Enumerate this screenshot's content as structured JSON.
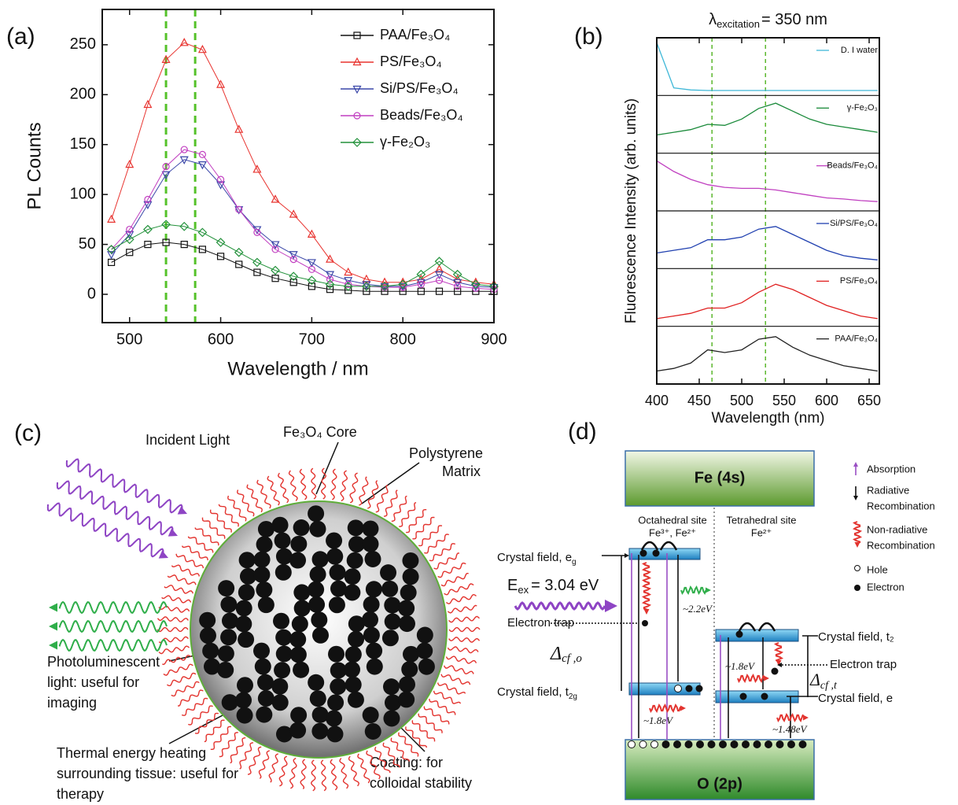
{
  "chart_data": [
    {
      "type": "line",
      "panel_label": "(a)",
      "xlabel": "Wavelength / nm",
      "ylabel": "PL Counts",
      "x": [
        480,
        500,
        520,
        540,
        560,
        580,
        600,
        620,
        640,
        660,
        680,
        700,
        720,
        740,
        760,
        780,
        800,
        820,
        840,
        860,
        880,
        900
      ],
      "xlim": [
        470,
        900
      ],
      "xticks": [
        500,
        600,
        700,
        800,
        900
      ],
      "ylim": [
        -26,
        283
      ],
      "yticks": [
        0,
        50,
        100,
        150,
        200,
        250
      ],
      "legend": "upper right",
      "vlines": {
        "values": [
          540,
          572
        ],
        "color": "#55c22a"
      },
      "series": [
        {
          "name": "PAA/Fe₃O₄",
          "color": "#111111",
          "marker": "square",
          "values": [
            32,
            42,
            50,
            52,
            50,
            45,
            38,
            30,
            22,
            16,
            12,
            8,
            5,
            4,
            3,
            3,
            3,
            3,
            3,
            3,
            3,
            3
          ]
        },
        {
          "name": "PS/Fe₃O₄",
          "color": "#e8332f",
          "marker": "triangle-up",
          "values": [
            75,
            130,
            190,
            235,
            252,
            245,
            210,
            165,
            125,
            95,
            80,
            60,
            35,
            22,
            15,
            12,
            12,
            15,
            25,
            15,
            12,
            10
          ]
        },
        {
          "name": "Si/PS/Fe₃O₄",
          "color": "#3a46a8",
          "marker": "triangle-down",
          "values": [
            40,
            60,
            90,
            120,
            135,
            130,
            110,
            85,
            65,
            50,
            40,
            32,
            20,
            14,
            10,
            8,
            8,
            12,
            20,
            12,
            8,
            7
          ]
        },
        {
          "name": "Beads/Fe₃O₄",
          "color": "#c13fc0",
          "marker": "circle",
          "values": [
            45,
            65,
            95,
            128,
            145,
            140,
            115,
            85,
            62,
            45,
            35,
            25,
            15,
            10,
            8,
            7,
            7,
            10,
            14,
            8,
            6,
            5
          ]
        },
        {
          "name": "γ-Fe₂O₃",
          "color": "#22913a",
          "marker": "diamond",
          "values": [
            45,
            55,
            65,
            70,
            68,
            62,
            52,
            42,
            32,
            24,
            18,
            14,
            10,
            8,
            8,
            8,
            10,
            20,
            33,
            20,
            10,
            8
          ]
        }
      ]
    },
    {
      "type": "line",
      "layout": "stacked",
      "panel_label": "(b)",
      "title": {
        "symbol": "λ",
        "subscript": "excitation",
        "text": "= 350 nm"
      },
      "xlabel": "Wavelength (nm)",
      "ylabel": "Fluorescence Intensity (arb. units)",
      "x": [
        400,
        420,
        440,
        460,
        480,
        500,
        520,
        540,
        560,
        580,
        600,
        620,
        640,
        660
      ],
      "xlim": [
        400,
        662
      ],
      "xticks": [
        400,
        450,
        500,
        550,
        600,
        650
      ],
      "ylim": [
        0,
        10
      ],
      "vlines": {
        "values": [
          465,
          528
        ],
        "color": "#5cb82e"
      },
      "series": [
        {
          "name": "D. I water",
          "color": "#40b8d8",
          "values": [
            9.5,
            1,
            0.6,
            0.5,
            0.5,
            0.5,
            0.5,
            0.5,
            0.5,
            0.5,
            0.5,
            0.5,
            0.5,
            0.5
          ]
        },
        {
          "name": "γ-Fe₂O₃",
          "color": "#1a8a3a",
          "values": [
            3,
            3.5,
            4,
            5,
            4.8,
            6,
            8,
            9,
            7.5,
            6,
            5,
            4.5,
            4,
            3.5
          ]
        },
        {
          "name": "Beads/Fe₃O₄",
          "color": "#c040c0",
          "values": [
            9,
            7,
            5.5,
            4.5,
            4,
            3.8,
            3.8,
            3.5,
            3,
            2.5,
            2,
            1.8,
            1.5,
            1.3
          ]
        },
        {
          "name": "Si/PS/Fe₃O₄",
          "color": "#2040b0",
          "values": [
            2.5,
            3,
            3.5,
            5,
            5,
            5.5,
            7,
            7.5,
            6,
            4.5,
            3,
            2,
            1.5,
            1.2
          ]
        },
        {
          "name": "PS/Fe₃O₄",
          "color": "#e02020",
          "values": [
            1,
            1.5,
            2,
            3,
            3,
            4,
            6,
            7.5,
            6.5,
            5,
            3.5,
            2.5,
            1.5,
            1
          ]
        },
        {
          "name": "PAA/Fe₃O₄",
          "color": "#222222",
          "values": [
            2,
            2.5,
            3.5,
            6,
            5.5,
            6,
            8,
            8.5,
            6.5,
            5,
            4,
            3,
            2.5,
            2
          ]
        }
      ]
    }
  ],
  "panel_c": {
    "panel_label": "(c)",
    "incident": "Incident Light",
    "core": "Fe₃O₄ Core",
    "matrix": [
      "Polystyrene",
      "Matrix"
    ],
    "photoluminescent": [
      "Photoluminescent",
      "light: useful for",
      "imaging"
    ],
    "thermal": [
      "Thermal energy heating",
      "surrounding tissue: useful for",
      "therapy"
    ],
    "coating": [
      "Coating: for",
      "colloidal stability"
    ]
  },
  "panel_d": {
    "panel_label": "(d)",
    "fe": "Fe (4s)",
    "o": "O (2p)",
    "octahedral": "Octahedral site",
    "oct_ions": "Fe³⁺, Fe²⁺",
    "tetrahedral": "Tetrahedral site",
    "tet_ions": "Fe²⁺",
    "eg": {
      "text": "Crystal field, e",
      "sub": "g"
    },
    "eex": {
      "text": "E",
      "sub": "ex",
      "rest": "= 3.04 eV"
    },
    "trap_left": "Electron trap",
    "delta_o": {
      "text": "Δ",
      "sub": "cf ,o"
    },
    "t2g": {
      "text": "Crystal field, t",
      "sub": "2g"
    },
    "e_22": "~2.2eV",
    "e_18_left": "~1.8eV",
    "t2": "Crystal field, t₂",
    "trap_right": "Electron trap",
    "delta_t": {
      "text": "Δ",
      "sub": "cf ,t"
    },
    "e_18_right": "~1.8eV",
    "e_field": "Crystal field, e",
    "e_148": "~1.48eV",
    "legend": {
      "absorption": "Absorption",
      "radiative": [
        "Radiative",
        "Recombination"
      ],
      "nonradiative": [
        "Non-radiative",
        "Recombination"
      ],
      "hole": "Hole",
      "electron": "Electron"
    }
  }
}
